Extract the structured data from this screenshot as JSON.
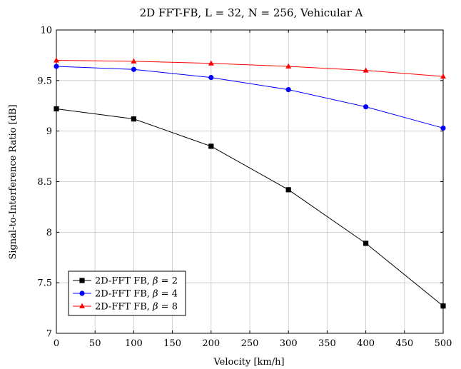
{
  "chart_data": {
    "type": "line",
    "title": "2D FFT-FB, L = 32, N = 256, Vehicular A",
    "xlabel": "Velocity [km/h]",
    "ylabel": "Signal-to-Interference Ratio [dB]",
    "xlim": [
      0,
      500
    ],
    "ylim": [
      7,
      10
    ],
    "xticks": [
      "0",
      "50",
      "100",
      "150",
      "200",
      "250",
      "300",
      "350",
      "400",
      "450",
      "500"
    ],
    "yticks": [
      "7",
      "7.5",
      "8",
      "8.5",
      "9",
      "9.5",
      "10"
    ],
    "grid": true,
    "legend_position": "bottom-left",
    "x": [
      0,
      100,
      200,
      300,
      400,
      500
    ],
    "series": [
      {
        "name_prefix": "2D-FFT FB, ",
        "name_symbol": "β",
        "name_suffix": " = 2",
        "color": "#000000",
        "marker": "square",
        "values": [
          9.22,
          9.12,
          8.85,
          8.42,
          7.89,
          7.27
        ]
      },
      {
        "name_prefix": "2D-FFT FB, ",
        "name_symbol": "β",
        "name_suffix": " = 4",
        "color": "#0000ff",
        "marker": "circle",
        "values": [
          9.64,
          9.61,
          9.53,
          9.41,
          9.24,
          9.03
        ]
      },
      {
        "name_prefix": "2D-FFT FB, ",
        "name_symbol": "β",
        "name_suffix": " = 8",
        "color": "#ff0000",
        "marker": "triangle",
        "values": [
          9.7,
          9.69,
          9.67,
          9.64,
          9.6,
          9.54
        ]
      }
    ]
  }
}
